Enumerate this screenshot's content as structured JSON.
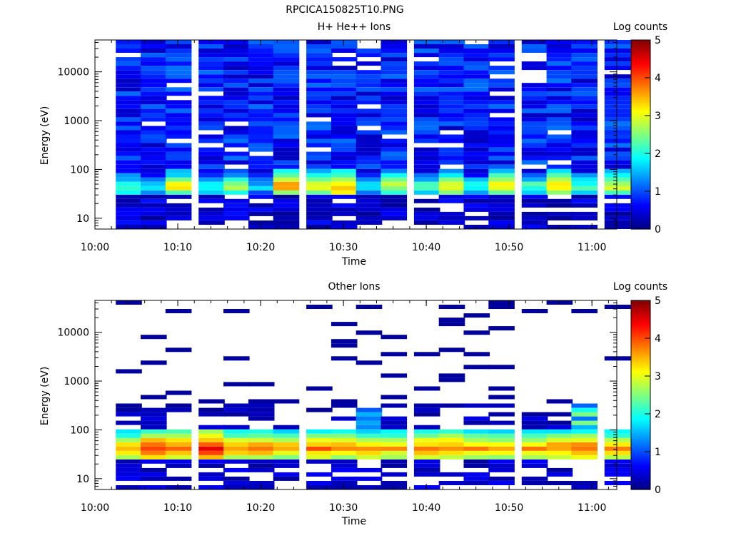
{
  "figure_title": "RPCICA150825T10.PNG",
  "chart_data": [
    {
      "type": "heatmap",
      "title": "H+ He++ Ions",
      "xlabel": "Time",
      "ylabel": "Energy (eV)",
      "xlim": [
        "10:00",
        "11:03"
      ],
      "xticks": [
        "10:00",
        "10:10",
        "10:20",
        "10:30",
        "10:40",
        "10:50",
        "11:00"
      ],
      "yscale": "log",
      "ylim": [
        6,
        45000
      ],
      "yticks": [
        "10",
        "100",
        "1000",
        "10000"
      ],
      "colorbar": {
        "label": "Log counts",
        "range": [
          0,
          5
        ],
        "ticks": [
          "0",
          "1",
          "2",
          "3",
          "4",
          "5"
        ]
      },
      "time_columns": [
        "10:02",
        "10:05",
        "10:08",
        "10:12",
        "10:15",
        "10:18",
        "10:21",
        "10:25",
        "10:28",
        "10:31",
        "10:34",
        "10:38",
        "10:41",
        "10:44",
        "10:47",
        "10:51",
        "10:54",
        "10:57",
        "11:01"
      ],
      "profile_note": "peak ~4 log counts near 40-60 eV; background ~0.3-1.2 above 100 eV; low ~0.2-0.6 below 25 eV",
      "peak_values_per_column": [
        2.8,
        2.4,
        3.6,
        2.6,
        3.2,
        2.2,
        3.9,
        3.5,
        4.0,
        2.3,
        3.3,
        2.7,
        3.6,
        2.5,
        3.7,
        2.6,
        3.9,
        2.8,
        3.4
      ]
    },
    {
      "type": "heatmap",
      "title": "Other Ions",
      "xlabel": "Time",
      "ylabel": "Energy (eV)",
      "xlim": [
        "10:00",
        "11:03"
      ],
      "xticks": [
        "10:00",
        "10:10",
        "10:20",
        "10:30",
        "10:40",
        "10:50",
        "11:00"
      ],
      "yscale": "log",
      "ylim": [
        6,
        45000
      ],
      "yticks": [
        "10",
        "100",
        "1000",
        "10000"
      ],
      "colorbar": {
        "label": "Log counts",
        "range": [
          0,
          5
        ],
        "ticks": [
          "0",
          "1",
          "2",
          "3",
          "4",
          "5"
        ]
      },
      "time_columns": [
        "10:02",
        "10:05",
        "10:08",
        "10:12",
        "10:15",
        "10:18",
        "10:21",
        "10:25",
        "10:28",
        "10:31",
        "10:34",
        "10:38",
        "10:41",
        "10:44",
        "10:47",
        "10:51",
        "10:54",
        "10:57",
        "11:01"
      ],
      "profile_note": "band 25-100 eV with peak ~4 log counts near 40 eV; sparse ~0.2 counts at high energies",
      "peak_values_per_column": [
        3.8,
        4.4,
        4.2,
        4.6,
        4.0,
        4.1,
        3.9,
        4.1,
        4.0,
        3.9,
        3.8,
        4.0,
        4.1,
        3.9,
        3.8,
        3.9,
        4.0,
        4.2,
        3.9
      ]
    }
  ]
}
